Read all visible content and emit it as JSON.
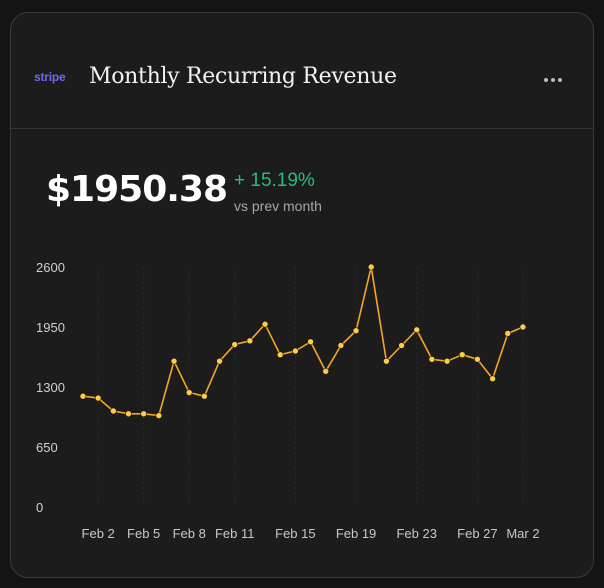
{
  "header": {
    "logo_text": "stripe",
    "title": "Monthly Recurring Revenue",
    "more_icon": "more-horizontal-icon"
  },
  "metric": {
    "value": "$1950.38",
    "change": "+ 15.19%",
    "change_sub": "vs prev month"
  },
  "colors": {
    "background": "#1c1c1c",
    "line": "#f5a623",
    "point": "#ffcc45",
    "positive": "#29bd79",
    "brand": "#6f66f6"
  },
  "chart_data": {
    "type": "line",
    "title": "",
    "xlabel": "",
    "ylabel": "",
    "ylim": [
      0,
      2600
    ],
    "yticks": [
      0,
      650,
      1300,
      1950,
      2600
    ],
    "x": [
      "Feb 1",
      "Feb 2",
      "Feb 3",
      "Feb 4",
      "Feb 5",
      "Feb 6",
      "Feb 7",
      "Feb 8",
      "Feb 9",
      "Feb 10",
      "Feb 11",
      "Feb 12",
      "Feb 13",
      "Feb 14",
      "Feb 15",
      "Feb 16",
      "Feb 17",
      "Feb 18",
      "Feb 19",
      "Feb 20",
      "Feb 21",
      "Feb 22",
      "Feb 23",
      "Feb 24",
      "Feb 25",
      "Feb 26",
      "Feb 27",
      "Feb 28",
      "Mar 1",
      "Mar 2"
    ],
    "xtick_labels": [
      "Feb 2",
      "Feb 5",
      "Feb 8",
      "Feb 11",
      "Feb 15",
      "Feb 19",
      "Feb 23",
      "Feb 27",
      "Mar 2"
    ],
    "grid": "vertical-dashed",
    "series": [
      {
        "values": [
          1200,
          1180,
          1040,
          1010,
          1010,
          990,
          1580,
          1240,
          1200,
          1580,
          1760,
          1800,
          1980,
          1650,
          1690,
          1790,
          1470,
          1750,
          1910,
          2600,
          1580,
          1750,
          1920,
          1600,
          1580,
          1650,
          1600,
          1390,
          1880,
          1950
        ]
      }
    ]
  }
}
